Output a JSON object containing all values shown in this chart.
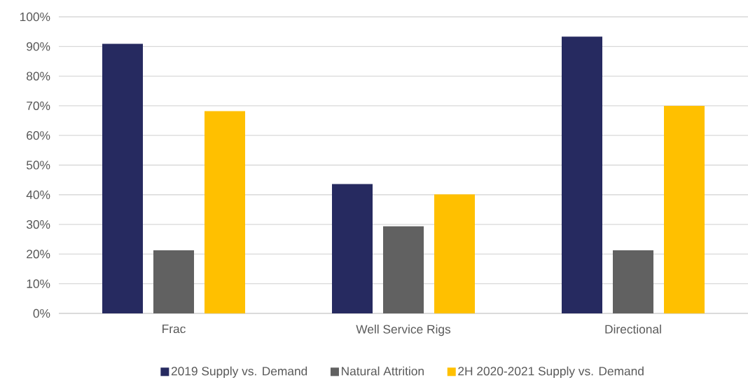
{
  "chart_data": {
    "type": "bar",
    "categories": [
      "Frac",
      "Well Service Rigs",
      "Directional"
    ],
    "series": [
      {
        "name": "2019 Supply vs. Demand",
        "color": "#262a60",
        "values": [
          90.9,
          43.6,
          93.3
        ]
      },
      {
        "name": "Natural Attrition",
        "color": "#616161",
        "values": [
          21.3,
          29.4,
          21.3
        ]
      },
      {
        "name": "2H 2020-2021  Supply vs. Demand",
        "color": "#ffc000",
        "values": [
          68.2,
          40.1,
          70.0
        ]
      }
    ],
    "ylim": [
      0,
      100
    ],
    "yticks": [
      {
        "value": 0,
        "label": "0%"
      },
      {
        "value": 10,
        "label": "10%"
      },
      {
        "value": 20,
        "label": "20%"
      },
      {
        "value": 30,
        "label": "30%"
      },
      {
        "value": 40,
        "label": "40%"
      },
      {
        "value": 50,
        "label": "50%"
      },
      {
        "value": 60,
        "label": "60%"
      },
      {
        "value": 70,
        "label": "70%"
      },
      {
        "value": 80,
        "label": "80%"
      },
      {
        "value": 90,
        "label": "90%"
      },
      {
        "value": 100,
        "label": "100%"
      }
    ],
    "grid": "y",
    "legend": "bottom"
  }
}
